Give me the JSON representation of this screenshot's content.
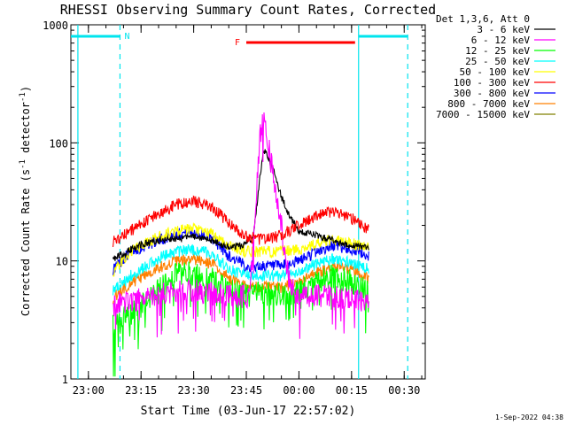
{
  "chart_data": {
    "type": "line",
    "title": "RHESSI Observing Summary Count Rates, Corrected",
    "xlabel": "Start Time (03-Jun-17 22:57:02)",
    "ylabel": "Corrected Count Rate (s",
    "ylabel_sup1": "-1",
    "ylabel_mid": " detector",
    "ylabel_sup2": "-1",
    "ylabel_end": ")",
    "y_scale": "log",
    "ylim": [
      1,
      1000
    ],
    "y_ticks": [
      "1",
      "10",
      "100",
      "1000"
    ],
    "x_range": [
      "22:55",
      "00:36"
    ],
    "x_ticks": [
      {
        "t": "23:00",
        "label": "23:00"
      },
      {
        "t": "23:15",
        "label": "23:15"
      },
      {
        "t": "23:30",
        "label": "23:30"
      },
      {
        "t": "23:45",
        "label": "23:45"
      },
      {
        "t": "00:00",
        "label": "00:00"
      },
      {
        "t": "00:15",
        "label": "00:15"
      },
      {
        "t": "00:30",
        "label": "00:30"
      }
    ],
    "grid": false,
    "legend_position": "right",
    "legend_header": "Det 1,3,6, Att 0",
    "series": [
      {
        "name": "3 - 6 keV",
        "color": "#000000",
        "points": [
          [
            "23:07",
            10.5
          ],
          [
            "23:10",
            11.5
          ],
          [
            "23:13",
            13
          ],
          [
            "23:18",
            14.5
          ],
          [
            "23:25",
            15.5
          ],
          [
            "23:30",
            16
          ],
          [
            "23:35",
            15
          ],
          [
            "23:40",
            13
          ],
          [
            "23:44",
            13.5
          ],
          [
            "23:47",
            16
          ],
          [
            "23:48",
            30
          ],
          [
            "23:49",
            55
          ],
          [
            "23:50",
            88
          ],
          [
            "23:51",
            78
          ],
          [
            "23:53",
            55
          ],
          [
            "23:55",
            35
          ],
          [
            "23:57",
            25
          ],
          [
            "00:00",
            18
          ],
          [
            "00:05",
            16.5
          ],
          [
            "00:10",
            15
          ],
          [
            "00:15",
            13.5
          ],
          [
            "00:20",
            13
          ]
        ]
      },
      {
        "name": "6 - 12 keV",
        "color": "#ff00ff",
        "points": [
          [
            "23:07",
            4.2
          ],
          [
            "23:15",
            4.8
          ],
          [
            "23:25",
            5.5
          ],
          [
            "23:30",
            5.6
          ],
          [
            "23:40",
            5
          ],
          [
            "23:46",
            5
          ],
          [
            "23:48",
            45
          ],
          [
            "23:49",
            120
          ],
          [
            "23:50",
            155
          ],
          [
            "23:51",
            110
          ],
          [
            "23:53",
            45
          ],
          [
            "23:55",
            20
          ],
          [
            "23:56",
            10
          ],
          [
            "23:58",
            6
          ],
          [
            "00:00",
            5
          ],
          [
            "00:10",
            5
          ],
          [
            "00:20",
            4.5
          ]
        ]
      },
      {
        "name": "12 - 25 keV",
        "color": "#00ff00",
        "points": [
          [
            "23:07",
            2.8
          ],
          [
            "23:12",
            3.5
          ],
          [
            "23:20",
            5.5
          ],
          [
            "23:25",
            7.5
          ],
          [
            "23:30",
            8
          ],
          [
            "23:35",
            7
          ],
          [
            "23:40",
            5.5
          ],
          [
            "23:45",
            5.2
          ],
          [
            "23:55",
            5.2
          ],
          [
            "00:00",
            5.5
          ],
          [
            "00:05",
            6.5
          ],
          [
            "00:10",
            7.5
          ],
          [
            "00:15",
            6.5
          ],
          [
            "00:20",
            5.5
          ]
        ]
      },
      {
        "name": "25 - 50 keV",
        "color": "#00ffff",
        "points": [
          [
            "23:07",
            5.5
          ],
          [
            "23:12",
            7.5
          ],
          [
            "23:20",
            10.5
          ],
          [
            "23:25",
            12
          ],
          [
            "23:30",
            12.5
          ],
          [
            "23:35",
            11.5
          ],
          [
            "23:40",
            8.5
          ],
          [
            "23:45",
            7.5
          ],
          [
            "23:55",
            7.5
          ],
          [
            "00:00",
            8
          ],
          [
            "00:05",
            9.5
          ],
          [
            "00:10",
            10.5
          ],
          [
            "00:15",
            9.5
          ],
          [
            "00:20",
            8.5
          ]
        ]
      },
      {
        "name": "50 - 100 keV",
        "color": "#ffff00",
        "points": [
          [
            "23:07",
            8
          ],
          [
            "23:12",
            12
          ],
          [
            "23:20",
            16
          ],
          [
            "23:25",
            18
          ],
          [
            "23:30",
            18.5
          ],
          [
            "23:35",
            17
          ],
          [
            "23:40",
            13.5
          ],
          [
            "23:45",
            12
          ],
          [
            "23:55",
            12
          ],
          [
            "00:00",
            12.5
          ],
          [
            "00:05",
            14
          ],
          [
            "00:10",
            15
          ],
          [
            "00:15",
            14
          ],
          [
            "00:20",
            13
          ]
        ]
      },
      {
        "name": "100 - 300 keV",
        "color": "#ff0000",
        "points": [
          [
            "23:07",
            14.5
          ],
          [
            "23:12",
            18
          ],
          [
            "23:20",
            25
          ],
          [
            "23:25",
            30
          ],
          [
            "23:30",
            32
          ],
          [
            "23:35",
            29
          ],
          [
            "23:40",
            21
          ],
          [
            "23:45",
            16
          ],
          [
            "23:50",
            15
          ],
          [
            "23:55",
            16.5
          ],
          [
            "00:00",
            20
          ],
          [
            "00:05",
            24
          ],
          [
            "00:10",
            26.5
          ],
          [
            "00:15",
            23
          ],
          [
            "00:20",
            18
          ]
        ]
      },
      {
        "name": "300 - 800 keV",
        "color": "#0000ff",
        "points": [
          [
            "23:07",
            8.5
          ],
          [
            "23:12",
            12
          ],
          [
            "23:20",
            15
          ],
          [
            "23:25",
            17
          ],
          [
            "23:30",
            17.5
          ],
          [
            "23:35",
            16
          ],
          [
            "23:40",
            11
          ],
          [
            "23:45",
            9
          ],
          [
            "23:55",
            9
          ],
          [
            "00:00",
            10
          ],
          [
            "00:05",
            12
          ],
          [
            "00:10",
            13.5
          ],
          [
            "00:15",
            12.5
          ],
          [
            "00:20",
            11
          ]
        ]
      },
      {
        "name": "800 - 7000 keV",
        "color": "#ff8000",
        "points": [
          [
            "23:07",
            4.8
          ],
          [
            "23:12",
            6.5
          ],
          [
            "23:20",
            8.8
          ],
          [
            "23:25",
            10
          ],
          [
            "23:30",
            10.3
          ],
          [
            "23:35",
            9.5
          ],
          [
            "23:40",
            7.2
          ],
          [
            "23:45",
            6
          ],
          [
            "23:55",
            6
          ],
          [
            "00:00",
            6.5
          ],
          [
            "00:05",
            8
          ],
          [
            "00:10",
            9
          ],
          [
            "00:15",
            8.5
          ],
          [
            "00:20",
            7
          ]
        ]
      },
      {
        "name": "7000 - 15000 keV",
        "color": "#808000",
        "points": []
      }
    ],
    "annotations": [
      {
        "label": "N",
        "color": "#00e5ee",
        "start": "22:55",
        "end": "23:09"
      },
      {
        "label": "N",
        "color": "#00e5ee",
        "start": "00:17",
        "end": "00:31"
      },
      {
        "label": "F",
        "color": "#ff0000",
        "start": "23:45",
        "end": "00:16"
      }
    ],
    "vertical_lines": [
      {
        "t": "22:57",
        "color": "#00e5ee",
        "style": "solid"
      },
      {
        "t": "23:09",
        "color": "#00e5ee",
        "style": "dashed"
      },
      {
        "t": "00:17",
        "color": "#00e5ee",
        "style": "solid"
      },
      {
        "t": "00:31",
        "color": "#00e5ee",
        "style": "dashed"
      }
    ]
  },
  "footer": {
    "timestamp": "1-Sep-2022 04:38"
  }
}
